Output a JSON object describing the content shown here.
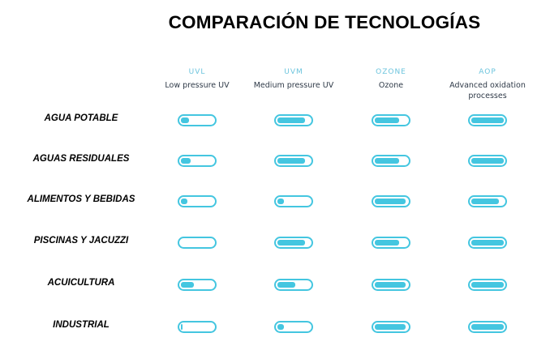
{
  "chart_data": {
    "type": "table",
    "title": "COMPARACIÓN DE TECNOLOGÍAS",
    "columns": [
      {
        "code": "UVL",
        "name": "Low pressure UV"
      },
      {
        "code": "UVM",
        "name": "Medium pressure UV"
      },
      {
        "code": "OZONE",
        "name": "Ozone"
      },
      {
        "code": "AOP",
        "name": "Advanced oxidation processes"
      }
    ],
    "rows": [
      {
        "label": "AGUA POTABLE",
        "levels": [
          0.25,
          0.85,
          0.75,
          1.0
        ]
      },
      {
        "label": "AGUAS RESIDUALES",
        "levels": [
          0.3,
          0.85,
          0.75,
          1.0
        ]
      },
      {
        "label": "ALIMENTOS Y BEBIDAS",
        "levels": [
          0.2,
          0.2,
          0.95,
          0.85
        ]
      },
      {
        "label": "PISCINAS Y JACUZZI",
        "levels": [
          0.0,
          0.85,
          0.75,
          1.0
        ]
      },
      {
        "label": "ACUICULTURA",
        "levels": [
          0.4,
          0.55,
          0.95,
          1.0
        ]
      },
      {
        "label": "INDUSTRIAL",
        "levels": [
          0.05,
          0.2,
          0.95,
          1.0
        ]
      }
    ]
  },
  "colors": {
    "accent": "#44c6e0",
    "column_code": "#6cc4dd",
    "column_name": "#2f3a48"
  }
}
